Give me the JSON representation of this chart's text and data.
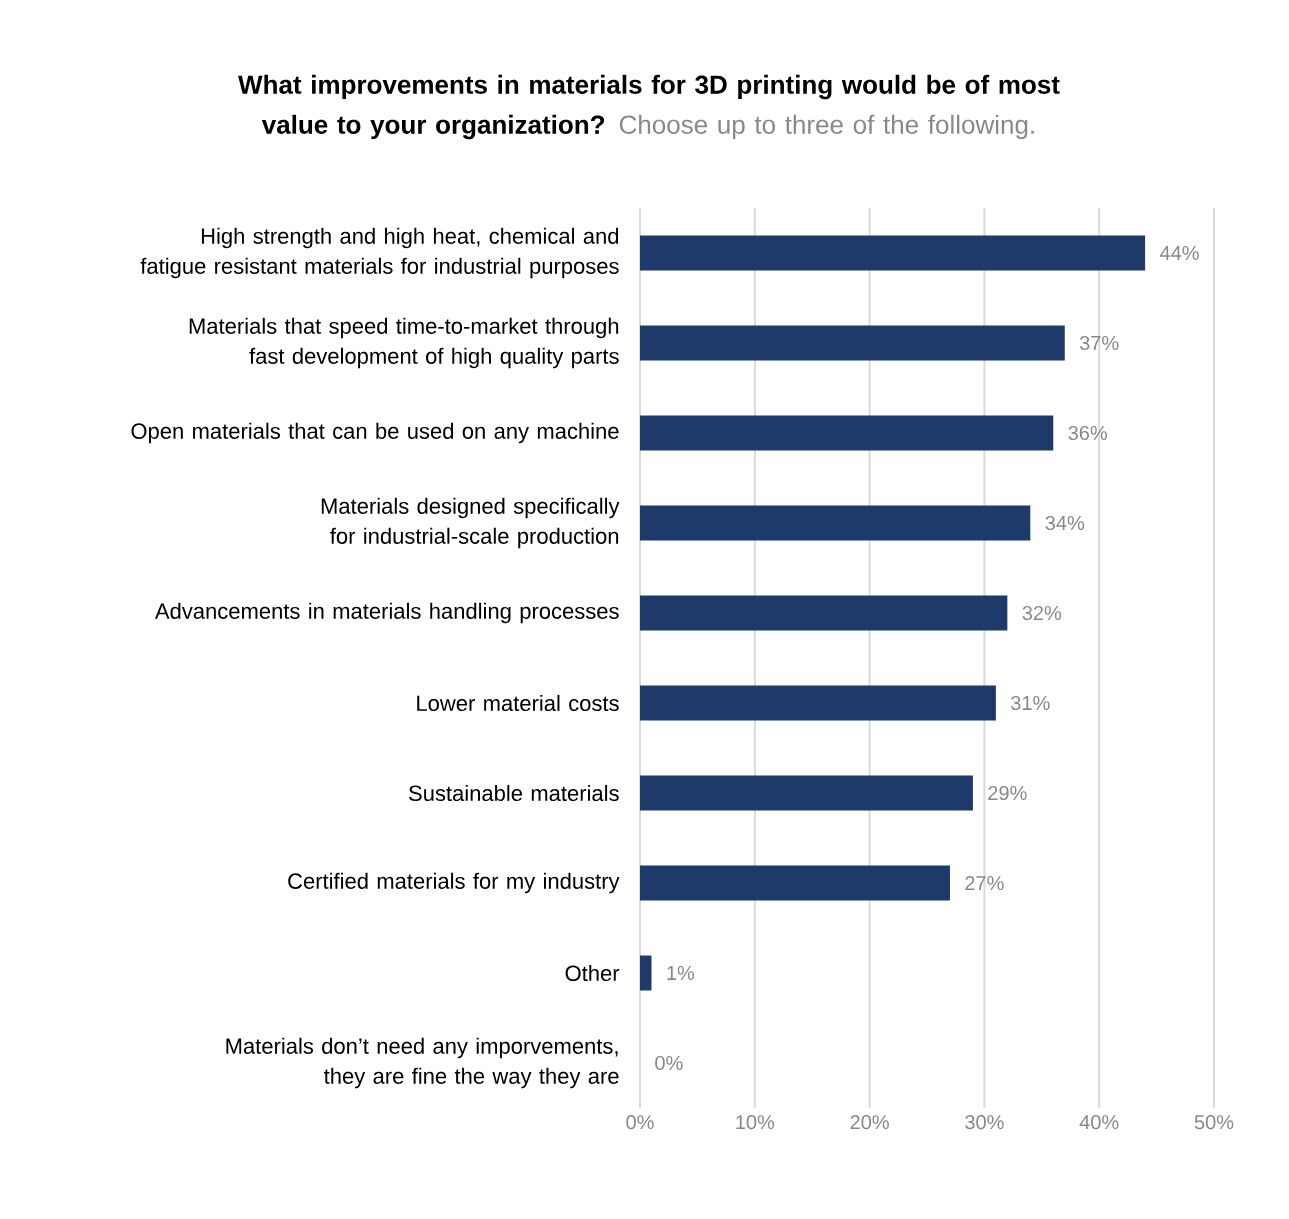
{
  "chart_data": {
    "type": "bar",
    "orientation": "horizontal",
    "title": "What improvements in materials for 3D printing would be of most value to your organization?",
    "subtitle": "Choose up to three of the following.",
    "categories": [
      "High strength and high heat, chemical and fatigue resistant materials for industrial purposes",
      "Materials that speed time-to-market through fast development of high quality parts",
      "Open materials that can be used on any machine",
      "Materials designed specifically for industrial-scale production",
      "Advancements in materials handling processes",
      "Lower material costs",
      "Sustainable materials",
      "Certified materials for my industry",
      "Other",
      "Materials don’t need any imporvements, they are fine the way they are"
    ],
    "values": [
      44,
      37,
      36,
      34,
      32,
      31,
      29,
      27,
      1,
      0
    ],
    "value_labels": [
      "44%",
      "37%",
      "36%",
      "34%",
      "32%",
      "31%",
      "29%",
      "27%",
      "1%",
      "0%"
    ],
    "color": "#1d3a6b",
    "xlim": [
      0,
      50
    ],
    "xticks": [
      {
        "value": 0,
        "label": "0%"
      },
      {
        "value": 10,
        "label": "10%"
      },
      {
        "value": 20,
        "label": "20%"
      },
      {
        "value": 30,
        "label": "30%"
      },
      {
        "value": 40,
        "label": "40%"
      },
      {
        "value": 50,
        "label": "50%"
      }
    ],
    "grid": "x"
  }
}
